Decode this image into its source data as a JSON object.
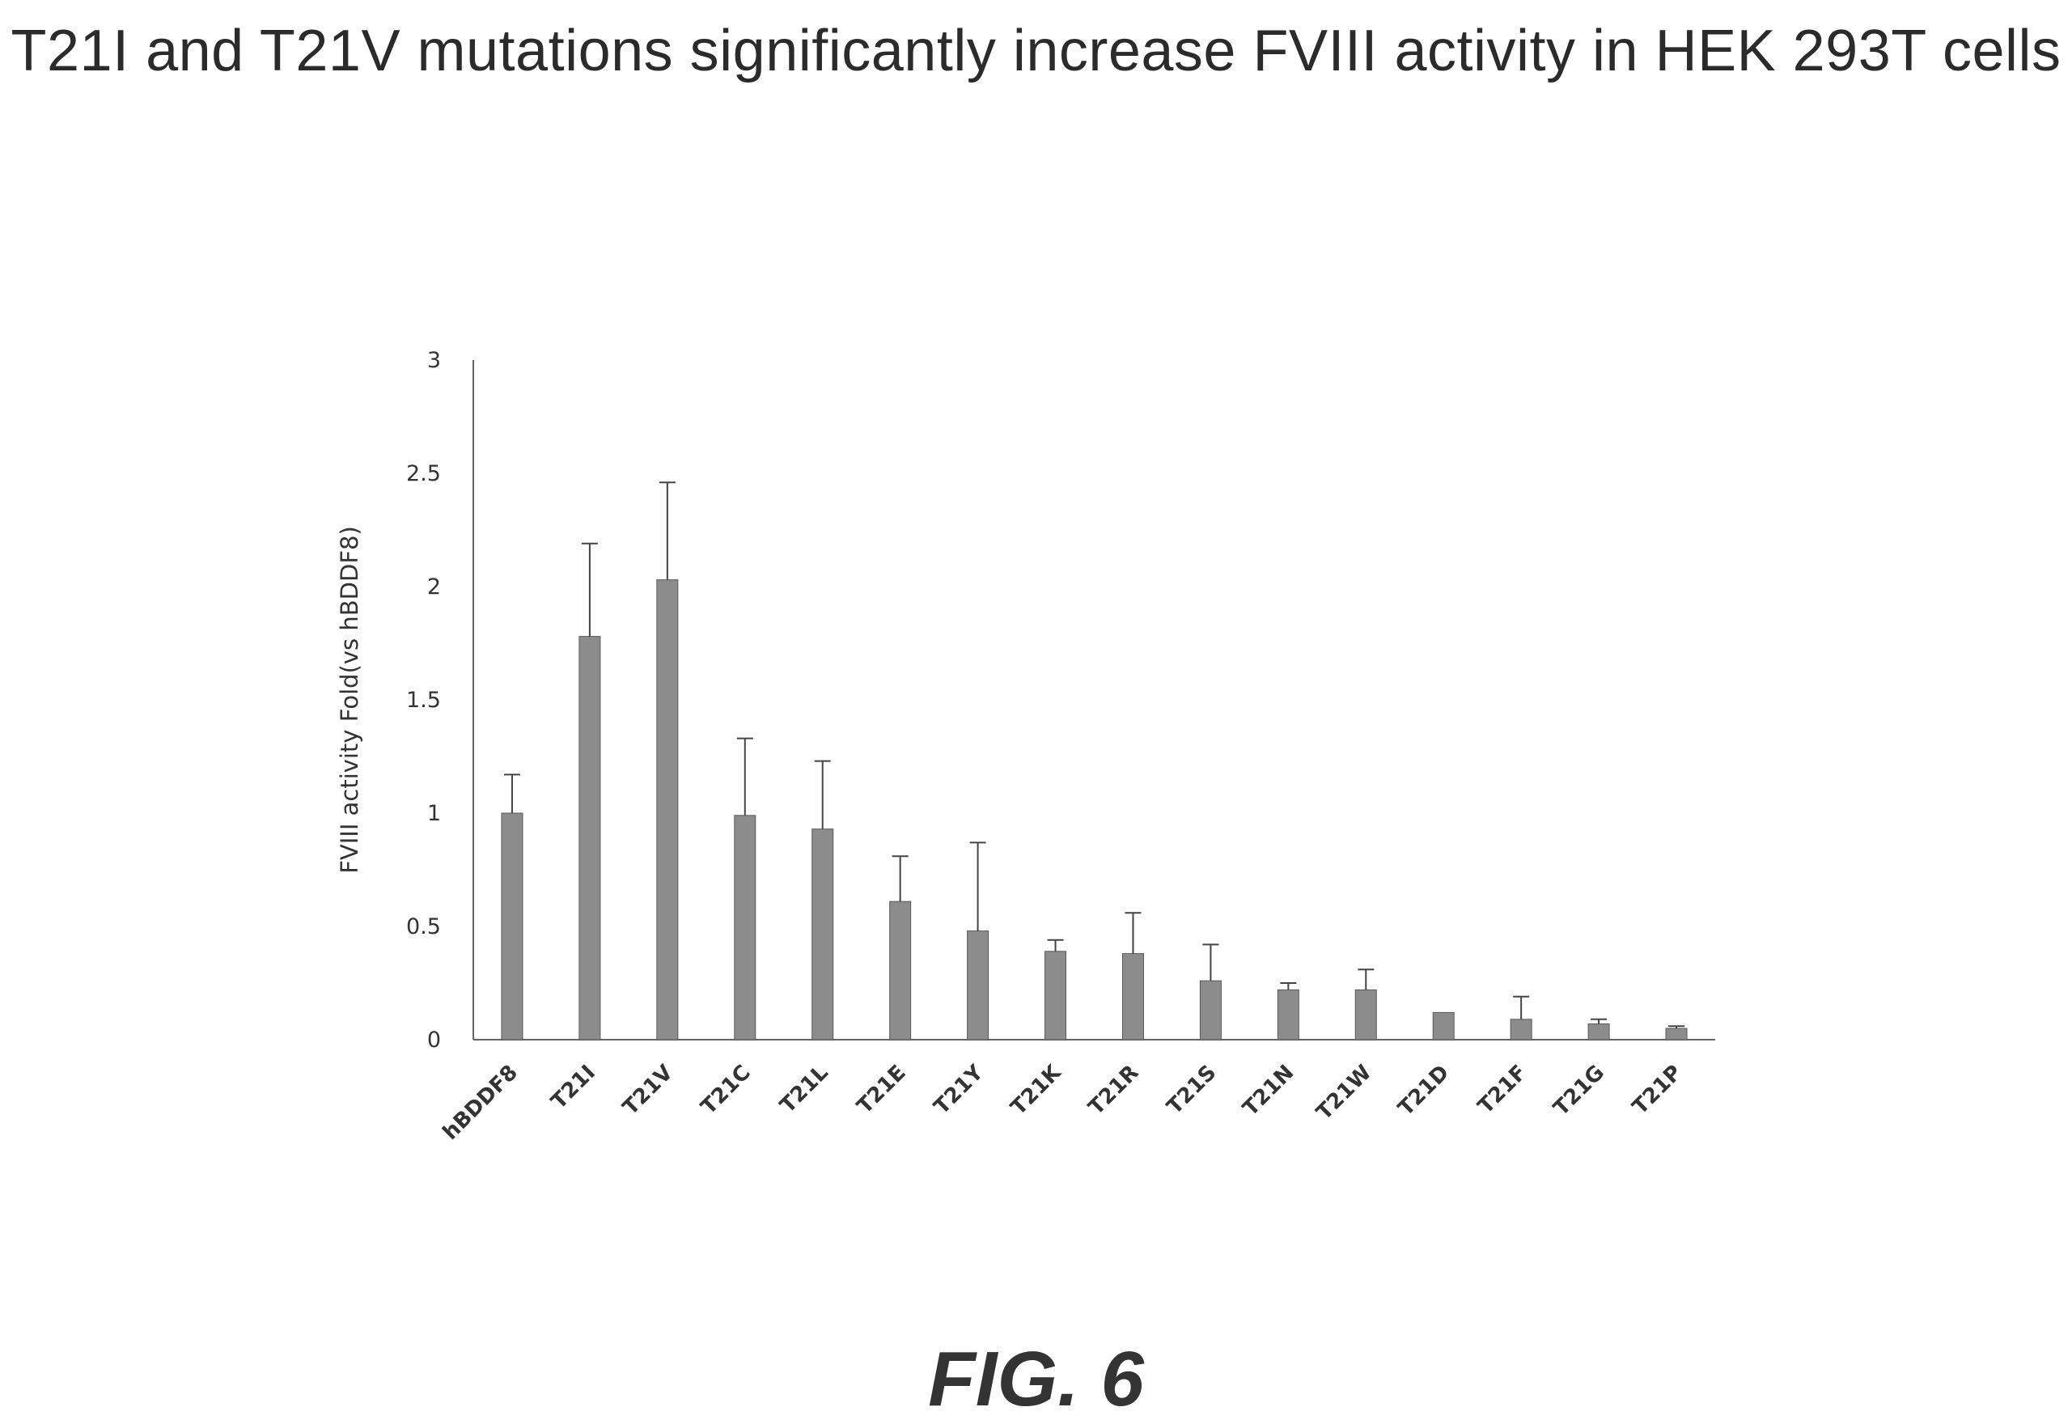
{
  "title": "T21I and T21V mutations significantly increase FVIII activity in HEK 293T cells",
  "figure_label": "FIG. 6",
  "colors": {
    "bar": "#8c8c8c",
    "bar_edge": "#5a5a5a",
    "axis": "#666666",
    "error_bar": "#444444"
  },
  "chart_data": {
    "type": "bar",
    "categories": [
      "hBDDF8",
      "T21I",
      "T21V",
      "T21C",
      "T21L",
      "T21E",
      "T21Y",
      "T21K",
      "T21R",
      "T21S",
      "T21N",
      "T21W",
      "T21D",
      "T21F",
      "T21G",
      "T21P"
    ],
    "values": [
      1.0,
      1.78,
      2.03,
      0.99,
      0.93,
      0.61,
      0.48,
      0.39,
      0.38,
      0.26,
      0.22,
      0.22,
      0.12,
      0.09,
      0.07,
      0.05
    ],
    "errors": [
      0.17,
      0.41,
      0.43,
      0.34,
      0.3,
      0.2,
      0.39,
      0.05,
      0.18,
      0.16,
      0.03,
      0.09,
      0.0,
      0.1,
      0.02,
      0.01
    ],
    "ylabel": "FVIII activity Fold(vs hBDDF8)",
    "xlabel": "",
    "ylim": [
      0,
      3
    ],
    "yticks": [
      "0",
      "0.5",
      "1",
      "1.5",
      "2",
      "2.5",
      "3"
    ],
    "ytick_values": [
      0,
      0.5,
      1,
      1.5,
      2,
      2.5,
      3
    ],
    "grid": false,
    "legend": "none"
  }
}
